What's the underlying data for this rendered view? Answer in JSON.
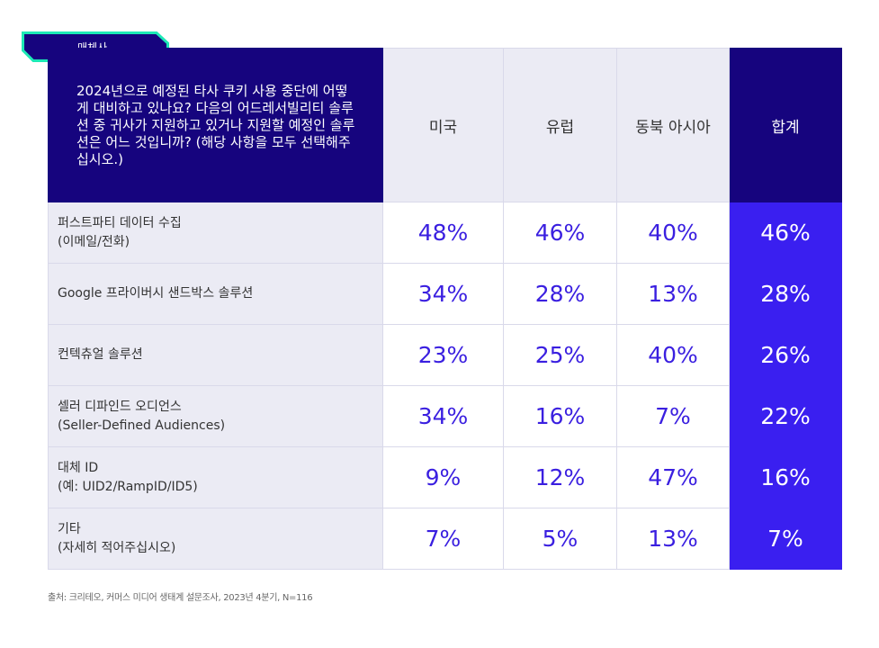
{
  "tag": {
    "label": "매체사"
  },
  "question": "2024년으로 예정된 타사 쿠키 사용 중단에 어떻게 대비하고 있나요? 다음의 어드레서빌리티 솔루션 중 귀사가 지원하고 있거나 지원할 예정인 솔루션은 어느 것입니까? (해당 사항을 모두 선택해주십시오.)",
  "columns": [
    "미국",
    "유럽",
    "동북 아시아",
    "합계"
  ],
  "rows": [
    {
      "label_line1": "퍼스트파티 데이터 수집",
      "label_line2": "(이메일/전화)",
      "values": [
        "48%",
        "46%",
        "40%",
        "46%"
      ]
    },
    {
      "label_line1": "Google 프라이버시 샌드박스 솔루션",
      "label_line2": "",
      "values": [
        "34%",
        "28%",
        "13%",
        "28%"
      ]
    },
    {
      "label_line1": "컨텍츄얼 솔루션",
      "label_line2": "",
      "values": [
        "23%",
        "25%",
        "40%",
        "26%"
      ]
    },
    {
      "label_line1": "셀러 디파인드 오디언스",
      "label_line2": "(Seller-Defined Audiences)",
      "values": [
        "34%",
        "16%",
        "7%",
        "22%"
      ]
    },
    {
      "label_line1": "대체 ID",
      "label_line2": "(예: UID2/RampID/ID5)",
      "values": [
        "9%",
        "12%",
        "47%",
        "16%"
      ]
    },
    {
      "label_line1": "기타",
      "label_line2": "(자세히 적어주십시오)",
      "values": [
        "7%",
        "5%",
        "13%",
        "7%"
      ]
    }
  ],
  "source": "출처: 크리테오, 커머스 미디어 생태계 설문조사, 2023년 4분기, N=116",
  "colors": {
    "header_navy": "#16047e",
    "total_blue": "#3a1ff0",
    "tag_border": "#1de9b6",
    "value_text": "#3a1fe0"
  }
}
